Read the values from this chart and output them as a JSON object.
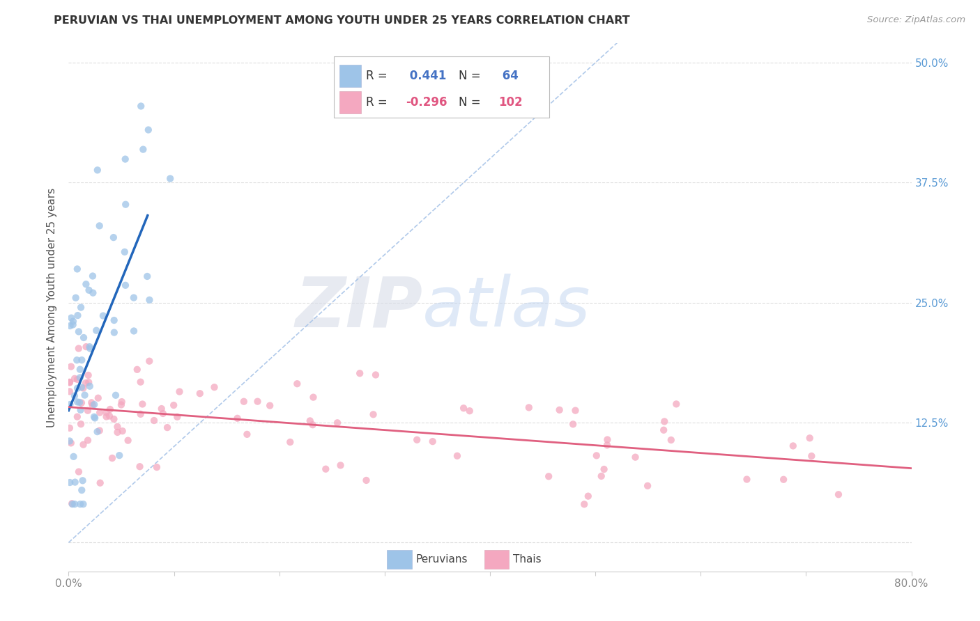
{
  "title": "PERUVIAN VS THAI UNEMPLOYMENT AMONG YOUTH UNDER 25 YEARS CORRELATION CHART",
  "source": "Source: ZipAtlas.com",
  "ylabel": "Unemployment Among Youth under 25 years",
  "xlim": [
    0.0,
    0.8
  ],
  "ylim": [
    -0.03,
    0.52
  ],
  "ytick_positions": [
    0.0,
    0.125,
    0.25,
    0.375,
    0.5
  ],
  "ytick_labels_right": [
    "",
    "12.5%",
    "25.0%",
    "37.5%",
    "50.0%"
  ],
  "xtick_positions": [
    0.0,
    0.1,
    0.2,
    0.3,
    0.4,
    0.5,
    0.6,
    0.7,
    0.8
  ],
  "xtick_labels": [
    "0.0%",
    "",
    "",
    "",
    "",
    "",
    "",
    "",
    "80.0%"
  ],
  "watermark_zip": "ZIP",
  "watermark_atlas": "atlas",
  "legend_r_peru": " 0.441",
  "legend_n_peru": " 64",
  "legend_r_thai": "-0.296",
  "legend_n_thai": "102",
  "peru_color": "#9ec4e8",
  "thai_color": "#f4a8c0",
  "peru_line_color": "#2266bb",
  "thai_line_color": "#e06080",
  "diag_line_color": "#a8c4e8",
  "background_color": "#ffffff",
  "grid_color": "#dddddd",
  "title_color": "#333333",
  "source_color": "#999999",
  "ylabel_color": "#555555",
  "tick_color_right": "#5b9bd5",
  "legend_blue": "#4472c4",
  "legend_pink": "#e05580"
}
